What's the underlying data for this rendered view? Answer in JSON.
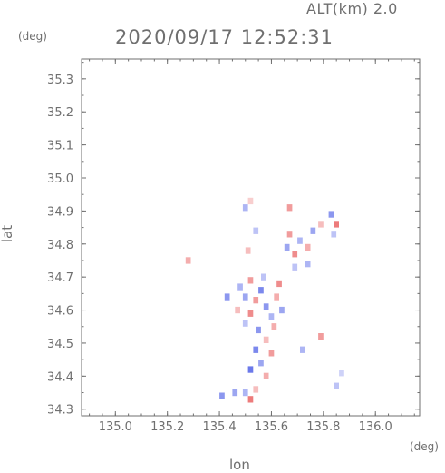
{
  "header": {
    "altitude_label": "ALT(km) 2.0",
    "timestamp": "2020/09/17 12:52:31"
  },
  "chart_data": {
    "type": "heatmap",
    "title": "2020/09/17 12:52:31",
    "subtitle": "ALT(km) 2.0",
    "xlabel": "lon",
    "ylabel": "lat",
    "x_unit": "(deg)",
    "y_unit": "(deg)",
    "xlim": [
      134.87,
      136.17
    ],
    "ylim": [
      34.28,
      35.36
    ],
    "x_ticks": [
      135.0,
      135.2,
      135.4,
      135.6,
      135.8,
      136.0
    ],
    "x_tick_labels": [
      "135.0",
      "135.2",
      "135.4",
      "135.6",
      "135.8",
      "136.0"
    ],
    "y_ticks": [
      34.3,
      34.4,
      34.5,
      34.6,
      34.7,
      34.8,
      34.9,
      35.0,
      35.1,
      35.2,
      35.3
    ],
    "y_tick_labels": [
      "34.3",
      "34.4",
      "34.5",
      "34.6",
      "34.7",
      "34.8",
      "34.9",
      "35.0",
      "35.1",
      "35.2",
      "35.3"
    ],
    "grid": false,
    "colors": {
      "positive": "#e85a5a",
      "negative": "#5a6ae8",
      "axis": "#6f6f6f"
    },
    "cells": [
      {
        "lon": 135.56,
        "lat": 34.66,
        "value": -0.8
      },
      {
        "lon": 135.54,
        "lat": 34.63,
        "value": 0.6
      },
      {
        "lon": 135.58,
        "lat": 34.61,
        "value": -0.7
      },
      {
        "lon": 135.52,
        "lat": 34.59,
        "value": 0.7
      },
      {
        "lon": 135.6,
        "lat": 34.58,
        "value": -0.5
      },
      {
        "lon": 135.5,
        "lat": 34.64,
        "value": -0.6
      },
      {
        "lon": 135.62,
        "lat": 34.64,
        "value": 0.5
      },
      {
        "lon": 135.55,
        "lat": 34.54,
        "value": -0.7
      },
      {
        "lon": 135.58,
        "lat": 34.51,
        "value": 0.4
      },
      {
        "lon": 135.54,
        "lat": 34.48,
        "value": -0.8
      },
      {
        "lon": 135.6,
        "lat": 34.47,
        "value": 0.6
      },
      {
        "lon": 135.56,
        "lat": 34.44,
        "value": -0.6
      },
      {
        "lon": 135.52,
        "lat": 34.42,
        "value": -0.9
      },
      {
        "lon": 135.63,
        "lat": 34.68,
        "value": 0.7
      },
      {
        "lon": 135.48,
        "lat": 34.67,
        "value": -0.5
      },
      {
        "lon": 135.52,
        "lat": 34.69,
        "value": 0.6
      },
      {
        "lon": 135.57,
        "lat": 34.7,
        "value": -0.4
      },
      {
        "lon": 135.61,
        "lat": 34.55,
        "value": 0.5
      },
      {
        "lon": 135.5,
        "lat": 34.56,
        "value": -0.4
      },
      {
        "lon": 135.64,
        "lat": 34.6,
        "value": -0.6
      },
      {
        "lon": 135.47,
        "lat": 34.6,
        "value": 0.4
      },
      {
        "lon": 135.58,
        "lat": 34.4,
        "value": 0.5
      },
      {
        "lon": 135.43,
        "lat": 34.64,
        "value": -0.7
      },
      {
        "lon": 135.46,
        "lat": 34.35,
        "value": -0.6
      },
      {
        "lon": 135.5,
        "lat": 34.35,
        "value": -0.5
      },
      {
        "lon": 135.54,
        "lat": 34.36,
        "value": 0.4
      },
      {
        "lon": 135.41,
        "lat": 34.34,
        "value": -0.7
      },
      {
        "lon": 135.52,
        "lat": 34.33,
        "value": 0.8
      },
      {
        "lon": 135.85,
        "lat": 34.37,
        "value": -0.4
      },
      {
        "lon": 135.87,
        "lat": 34.41,
        "value": -0.3
      },
      {
        "lon": 135.79,
        "lat": 34.52,
        "value": 0.6
      },
      {
        "lon": 135.72,
        "lat": 34.48,
        "value": -0.5
      },
      {
        "lon": 135.66,
        "lat": 34.79,
        "value": -0.6
      },
      {
        "lon": 135.69,
        "lat": 34.77,
        "value": 0.7
      },
      {
        "lon": 135.71,
        "lat": 34.81,
        "value": -0.5
      },
      {
        "lon": 135.74,
        "lat": 34.79,
        "value": 0.5
      },
      {
        "lon": 135.76,
        "lat": 34.84,
        "value": -0.6
      },
      {
        "lon": 135.67,
        "lat": 34.83,
        "value": 0.6
      },
      {
        "lon": 135.69,
        "lat": 34.73,
        "value": -0.4
      },
      {
        "lon": 135.74,
        "lat": 34.74,
        "value": -0.5
      },
      {
        "lon": 135.79,
        "lat": 34.86,
        "value": 0.4
      },
      {
        "lon": 135.83,
        "lat": 34.89,
        "value": -0.7
      },
      {
        "lon": 135.85,
        "lat": 34.86,
        "value": 0.8
      },
      {
        "lon": 135.84,
        "lat": 34.83,
        "value": -0.4
      },
      {
        "lon": 135.5,
        "lat": 34.91,
        "value": -0.5
      },
      {
        "lon": 135.52,
        "lat": 34.93,
        "value": 0.3
      },
      {
        "lon": 135.67,
        "lat": 34.91,
        "value": 0.6
      },
      {
        "lon": 135.54,
        "lat": 34.84,
        "value": -0.4
      },
      {
        "lon": 135.51,
        "lat": 34.78,
        "value": 0.4
      },
      {
        "lon": 135.28,
        "lat": 34.75,
        "value": 0.5
      }
    ]
  }
}
